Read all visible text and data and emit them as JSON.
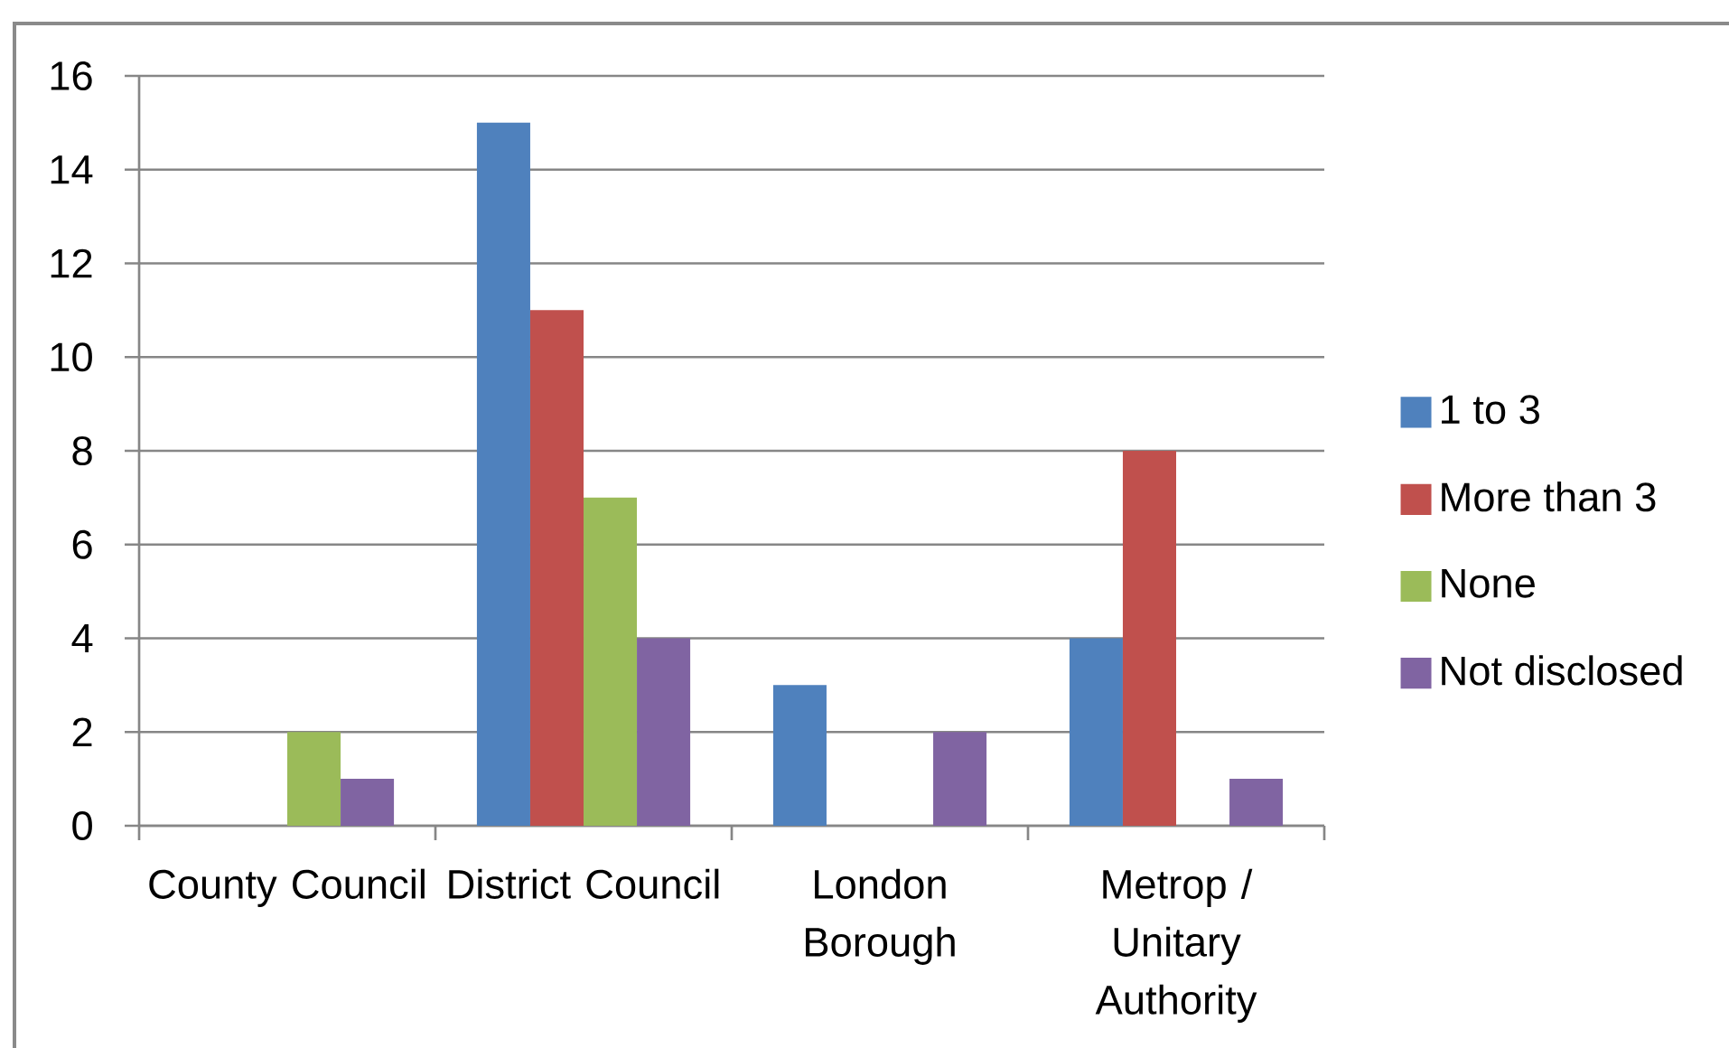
{
  "chart_data": {
    "type": "bar",
    "categories": [
      "County Council",
      "District Council",
      "London Borough",
      "Metrop / Unitary Authority"
    ],
    "series": [
      {
        "name": "1 to 3",
        "color": "#4f81bd",
        "values": [
          0,
          15,
          3,
          4
        ]
      },
      {
        "name": "More than 3",
        "color": "#c0504d",
        "values": [
          0,
          11,
          0,
          8
        ]
      },
      {
        "name": "None",
        "color": "#9bbb59",
        "values": [
          2,
          7,
          0,
          0
        ]
      },
      {
        "name": "Not disclosed",
        "color": "#8064a2",
        "values": [
          1,
          4,
          2,
          1
        ]
      }
    ],
    "ylim": [
      0,
      16
    ],
    "yticks": [
      0,
      2,
      4,
      6,
      8,
      10,
      12,
      14,
      16
    ],
    "grid": "y",
    "legend": "right"
  }
}
